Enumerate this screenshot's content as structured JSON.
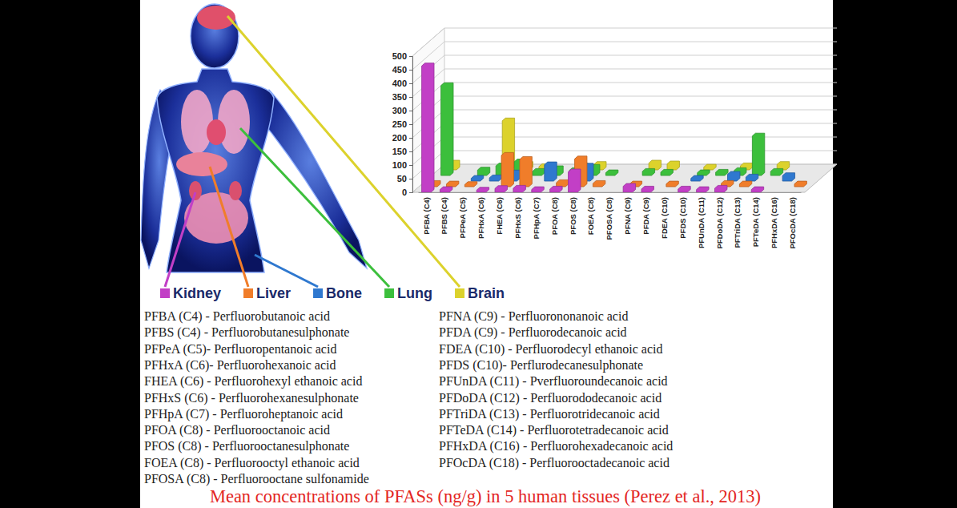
{
  "chart_data": {
    "type": "bar",
    "title": "Mean concentrations of PFASs (ng/g) in 5 human tissues (Perez et al., 2013)",
    "categories": [
      "PFBA (C4)",
      "PFBS (C4)",
      "PFPeA (C5)",
      "PFHxA (C6)",
      "FHEA (C6)",
      "PFHxS (C6)",
      "PFHpA (C7)",
      "PFOA (C8)",
      "PFOS (C8)",
      "FOEA (C8)",
      "PFOSA (C8)",
      "PFNA (C9)",
      "PFDA (C9)",
      "FDEA (C10)",
      "PFDS (C10)",
      "PFUnDA (C11)",
      "PFDoDA (C12)",
      "PFTriDA (C13)",
      "PFTeDA (C14)",
      "PFHxDA (C16)",
      "PFOcDA (C18)"
    ],
    "series": [
      {
        "name": "Kidney",
        "color": "#c23fc6",
        "values": [
          464,
          10,
          null,
          8,
          14,
          15,
          10,
          12,
          75,
          null,
          null,
          22,
          12,
          null,
          12,
          10,
          15,
          null,
          10,
          null,
          null
        ]
      },
      {
        "name": "Liver",
        "color": "#f07d2a",
        "values": [
          12,
          10,
          8,
          null,
          115,
          100,
          null,
          15,
          102,
          12,
          null,
          10,
          null,
          10,
          null,
          null,
          12,
          10,
          null,
          null,
          10
        ]
      },
      {
        "name": "Bone",
        "color": "#2f78cf",
        "values": [
          null,
          null,
          10,
          12,
          30,
          null,
          60,
          null,
          55,
          null,
          null,
          null,
          null,
          null,
          10,
          null,
          25,
          15,
          null,
          20,
          null
        ]
      },
      {
        "name": "Lung",
        "color": "#3cbf3c",
        "values": [
          330,
          null,
          20,
          35,
          50,
          15,
          25,
          18,
          30,
          10,
          null,
          15,
          12,
          null,
          10,
          12,
          18,
          145,
          15,
          null,
          null
        ]
      },
      {
        "name": "Brain",
        "color": "#dcd22c",
        "values": [
          25,
          null,
          null,
          180,
          20,
          12,
          null,
          15,
          20,
          null,
          null,
          25,
          22,
          null,
          10,
          null,
          15,
          null,
          20,
          null,
          null
        ]
      }
    ],
    "ylim": [
      0,
      500
    ],
    "yticks": [
      0,
      50,
      100,
      150,
      200,
      250,
      300,
      350,
      400,
      450,
      500
    ],
    "grid": true,
    "legend": "bottom"
  },
  "glossary": {
    "columns": [
      [
        "PFBA (C4) - Perfluorobutanoic acid",
        "PFBS (C4) - Perfluorobutanesulphonate",
        "PFPeA (C5)- Perfluoropentanoic acid",
        "PFHxA (C6)- Perfluorohexanoic acid",
        "FHEA (C6) - Perfluorohexyl ethanoic acid",
        "PFHxS (C6) - Perfluorohexanesulphonate",
        "PFHpA (C7) - Perfluoroheptanoic acid",
        "PFOA (C8) - Perfluorooctanoic acid",
        "PFOS (C8) - Perfluorooctanesulphonate",
        "FOEA (C8) - Perfluorooctyl ethanoic acid",
        "PFOSA (C8) - Perfluorooctane sulfonamide"
      ],
      [
        "PFNA (C9) - Perfluorononanoic acid",
        "PFDA (C9) - Perfluorodecanoic acid",
        "FDEA (C10) - Perfluorodecyl ethanoic acid",
        "PFDS (C10)- Perflurodecanesulphonate",
        "PFUnDA (C11) - Pverfluoroundecanoic acid",
        "PFDoDA (C12) - Perfluorododecanoic acid",
        "PFTriDA (C13) - Perfluorotridecanoic acid",
        "PFTeDA (C14) - Perfluorotetradecanoic acid",
        "PFHxDA (C16) - Perfluorohexadecanoic acid",
        "PFOcDA (C18) - Perfluorooctadecanoic acid"
      ]
    ]
  }
}
